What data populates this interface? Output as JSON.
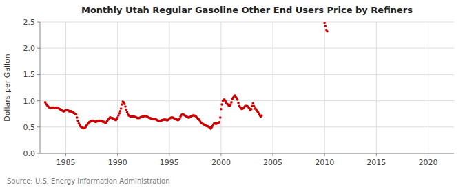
{
  "chart_data": {
    "type": "scatter",
    "title": "Monthly Utah Regular Gasoline Other End Users Price by Refiners",
    "y_label": "Dollars per Gallon",
    "annotations": [
      "Source: U.S. Energy Information Administration"
    ],
    "color": "#cc0000",
    "grid": true,
    "xlim": [
      1982.5,
      2022.5
    ],
    "xticks": [
      1985,
      1990,
      1995,
      2000,
      2005,
      2010,
      2015,
      2020
    ],
    "ylim": [
      0.0,
      2.5
    ],
    "yticks": [
      {
        "value": 0.0,
        "label": "0.0"
      },
      0.5,
      {
        "value": 1.0,
        "label": "1.0"
      },
      1.5,
      {
        "value": 2.0,
        "label": "2.0"
      },
      2.5
    ],
    "x": [
      1983.0,
      1983.08,
      1983.17,
      1983.25,
      1983.33,
      1983.42,
      1983.5,
      1983.58,
      1983.67,
      1983.75,
      1983.83,
      1983.92,
      1984.0,
      1984.08,
      1984.17,
      1984.25,
      1984.33,
      1984.42,
      1984.5,
      1984.58,
      1984.67,
      1984.75,
      1984.83,
      1984.92,
      1985.0,
      1985.08,
      1985.17,
      1985.25,
      1985.33,
      1985.42,
      1985.5,
      1985.58,
      1985.67,
      1985.75,
      1985.83,
      1985.92,
      1986.0,
      1986.08,
      1986.17,
      1986.25,
      1986.33,
      1986.42,
      1986.5,
      1986.58,
      1986.67,
      1986.75,
      1986.83,
      1986.92,
      1987.0,
      1987.08,
      1987.17,
      1987.25,
      1987.33,
      1987.42,
      1987.5,
      1987.58,
      1987.67,
      1987.75,
      1987.83,
      1987.92,
      1988.0,
      1988.08,
      1988.17,
      1988.25,
      1988.33,
      1988.42,
      1988.5,
      1988.58,
      1988.67,
      1988.75,
      1988.83,
      1988.92,
      1989.0,
      1989.08,
      1989.17,
      1989.25,
      1989.33,
      1989.42,
      1989.5,
      1989.58,
      1989.67,
      1989.75,
      1989.83,
      1989.92,
      1990.0,
      1990.08,
      1990.17,
      1990.25,
      1990.33,
      1990.42,
      1990.5,
      1990.58,
      1990.67,
      1990.75,
      1990.83,
      1990.92,
      1991.0,
      1991.08,
      1991.17,
      1991.25,
      1991.33,
      1991.42,
      1991.5,
      1991.58,
      1991.67,
      1991.75,
      1991.83,
      1991.92,
      1992.0,
      1992.08,
      1992.17,
      1992.25,
      1992.33,
      1992.42,
      1992.5,
      1992.58,
      1992.67,
      1992.75,
      1992.83,
      1992.92,
      1993.0,
      1993.08,
      1993.17,
      1993.25,
      1993.33,
      1993.42,
      1993.5,
      1993.58,
      1993.67,
      1993.75,
      1993.83,
      1993.92,
      1994.0,
      1994.08,
      1994.17,
      1994.25,
      1994.33,
      1994.42,
      1994.5,
      1994.58,
      1994.67,
      1994.75,
      1994.83,
      1994.92,
      1995.0,
      1995.08,
      1995.17,
      1995.25,
      1995.33,
      1995.42,
      1995.5,
      1995.58,
      1995.67,
      1995.75,
      1995.83,
      1995.92,
      1996.0,
      1996.08,
      1996.17,
      1996.25,
      1996.33,
      1996.42,
      1996.5,
      1996.58,
      1996.67,
      1996.75,
      1996.83,
      1996.92,
      1997.0,
      1997.08,
      1997.17,
      1997.25,
      1997.33,
      1997.42,
      1997.5,
      1997.58,
      1997.67,
      1997.75,
      1997.83,
      1997.92,
      1998.0,
      1998.08,
      1998.17,
      1998.25,
      1998.33,
      1998.42,
      1998.5,
      1998.58,
      1998.67,
      1998.75,
      1998.83,
      1998.92,
      1999.0,
      1999.08,
      1999.17,
      1999.25,
      1999.33,
      1999.42,
      1999.5,
      1999.58,
      1999.67,
      1999.75,
      1999.83,
      1999.92,
      2000.0,
      2000.08,
      2000.17,
      2000.25,
      2000.33,
      2000.42,
      2000.5,
      2000.58,
      2000.67,
      2000.75,
      2000.83,
      2000.92,
      2001.0,
      2001.08,
      2001.17,
      2001.25,
      2001.33,
      2001.42,
      2001.5,
      2001.58,
      2001.67,
      2001.75,
      2001.83,
      2001.92,
      2002.0,
      2002.08,
      2002.17,
      2002.25,
      2002.33,
      2002.42,
      2002.5,
      2002.58,
      2002.67,
      2002.75,
      2002.83,
      2002.92,
      2003.0,
      2003.08,
      2003.17,
      2003.25,
      2003.33,
      2003.42,
      2003.5,
      2003.58,
      2003.67,
      2003.75,
      2003.83,
      2003.92,
      2010.0,
      2010.08,
      2010.17,
      2010.25
    ],
    "values": [
      0.97,
      0.94,
      0.92,
      0.9,
      0.88,
      0.87,
      0.86,
      0.87,
      0.87,
      0.87,
      0.87,
      0.86,
      0.86,
      0.87,
      0.87,
      0.86,
      0.85,
      0.84,
      0.83,
      0.82,
      0.81,
      0.8,
      0.8,
      0.81,
      0.82,
      0.82,
      0.82,
      0.81,
      0.8,
      0.8,
      0.8,
      0.79,
      0.78,
      0.77,
      0.76,
      0.75,
      0.74,
      0.68,
      0.62,
      0.57,
      0.54,
      0.51,
      0.5,
      0.49,
      0.48,
      0.48,
      0.48,
      0.5,
      0.53,
      0.55,
      0.57,
      0.59,
      0.6,
      0.61,
      0.62,
      0.62,
      0.62,
      0.61,
      0.6,
      0.6,
      0.61,
      0.61,
      0.62,
      0.62,
      0.62,
      0.62,
      0.61,
      0.6,
      0.6,
      0.59,
      0.58,
      0.59,
      0.62,
      0.64,
      0.66,
      0.68,
      0.68,
      0.67,
      0.67,
      0.66,
      0.65,
      0.64,
      0.63,
      0.65,
      0.68,
      0.72,
      0.76,
      0.8,
      0.85,
      0.93,
      0.98,
      0.97,
      0.94,
      0.89,
      0.83,
      0.78,
      0.74,
      0.72,
      0.71,
      0.7,
      0.7,
      0.7,
      0.7,
      0.7,
      0.69,
      0.69,
      0.68,
      0.67,
      0.67,
      0.67,
      0.68,
      0.69,
      0.69,
      0.7,
      0.7,
      0.71,
      0.71,
      0.71,
      0.7,
      0.69,
      0.68,
      0.67,
      0.67,
      0.66,
      0.66,
      0.65,
      0.65,
      0.65,
      0.65,
      0.64,
      0.63,
      0.62,
      0.62,
      0.62,
      0.62,
      0.63,
      0.63,
      0.64,
      0.64,
      0.64,
      0.64,
      0.63,
      0.63,
      0.64,
      0.66,
      0.67,
      0.68,
      0.68,
      0.68,
      0.67,
      0.66,
      0.65,
      0.65,
      0.64,
      0.63,
      0.64,
      0.66,
      0.7,
      0.73,
      0.74,
      0.74,
      0.73,
      0.72,
      0.71,
      0.7,
      0.69,
      0.68,
      0.68,
      0.69,
      0.7,
      0.71,
      0.72,
      0.72,
      0.72,
      0.71,
      0.7,
      0.68,
      0.66,
      0.65,
      0.63,
      0.6,
      0.58,
      0.57,
      0.56,
      0.55,
      0.54,
      0.53,
      0.52,
      0.52,
      0.51,
      0.5,
      0.49,
      0.47,
      0.49,
      0.52,
      0.55,
      0.57,
      0.58,
      0.56,
      0.57,
      0.57,
      0.58,
      0.59,
      0.68,
      0.84,
      0.93,
      1.0,
      1.02,
      1.02,
      0.99,
      0.96,
      0.94,
      0.93,
      0.91,
      0.9,
      0.93,
      0.97,
      1.03,
      1.06,
      1.09,
      1.1,
      1.07,
      1.05,
      1.02,
      0.96,
      0.9,
      0.88,
      0.86,
      0.84,
      0.85,
      0.86,
      0.88,
      0.9,
      0.9,
      0.9,
      0.89,
      0.87,
      0.85,
      0.82,
      0.84,
      0.9,
      0.95,
      0.9,
      0.85,
      0.85,
      0.82,
      0.8,
      0.78,
      0.75,
      0.72,
      0.7,
      0.72,
      2.48,
      2.42,
      2.35,
      2.32
    ]
  }
}
